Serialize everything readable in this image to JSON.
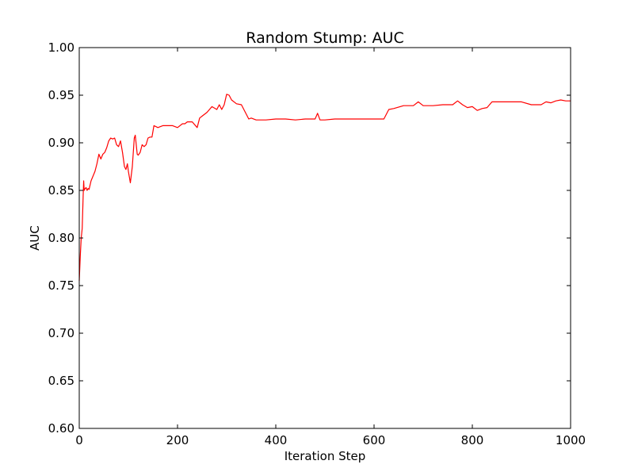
{
  "chart_data": {
    "type": "line",
    "title": "Random Stump: AUC",
    "xlabel": "Iteration Step",
    "ylabel": "AUC",
    "xlim": [
      0,
      1000
    ],
    "ylim": [
      0.6,
      1.0
    ],
    "grid": false,
    "x_ticks": [
      "0",
      "200",
      "400",
      "600",
      "800",
      "1000"
    ],
    "y_ticks": [
      "0.60",
      "0.65",
      "0.70",
      "0.75",
      "0.80",
      "0.85",
      "0.90",
      "0.95",
      "1.00"
    ],
    "series": [
      {
        "color": "#ff0000",
        "x": [
          0,
          2,
          4,
          6,
          8,
          9,
          10,
          12,
          14,
          16,
          18,
          20,
          24,
          28,
          32,
          36,
          40,
          44,
          48,
          52,
          56,
          60,
          64,
          68,
          72,
          76,
          80,
          84,
          88,
          92,
          95,
          98,
          100,
          104,
          108,
          110,
          112,
          114,
          118,
          120,
          124,
          128,
          132,
          136,
          140,
          144,
          148,
          152,
          156,
          160,
          170,
          180,
          190,
          200,
          210,
          215,
          220,
          230,
          240,
          245,
          250,
          260,
          270,
          280,
          285,
          290,
          295,
          300,
          305,
          310,
          320,
          330,
          340,
          345,
          350,
          360,
          380,
          400,
          420,
          440,
          460,
          470,
          480,
          485,
          490,
          500,
          520,
          540,
          560,
          580,
          600,
          610,
          620,
          630,
          640,
          660,
          680,
          690,
          700,
          720,
          740,
          760,
          770,
          780,
          790,
          800,
          810,
          820,
          830,
          840,
          860,
          880,
          900,
          920,
          940,
          950,
          960,
          970,
          980,
          990,
          1000
        ],
        "y": [
          0.755,
          0.78,
          0.8,
          0.81,
          0.845,
          0.86,
          0.85,
          0.852,
          0.853,
          0.85,
          0.852,
          0.851,
          0.86,
          0.865,
          0.87,
          0.878,
          0.888,
          0.883,
          0.888,
          0.89,
          0.895,
          0.902,
          0.905,
          0.904,
          0.905,
          0.898,
          0.896,
          0.902,
          0.89,
          0.875,
          0.872,
          0.878,
          0.87,
          0.858,
          0.875,
          0.89,
          0.905,
          0.908,
          0.888,
          0.887,
          0.89,
          0.898,
          0.896,
          0.898,
          0.905,
          0.906,
          0.906,
          0.918,
          0.917,
          0.916,
          0.918,
          0.918,
          0.918,
          0.916,
          0.92,
          0.92,
          0.922,
          0.922,
          0.916,
          0.926,
          0.928,
          0.932,
          0.938,
          0.935,
          0.94,
          0.935,
          0.94,
          0.951,
          0.95,
          0.945,
          0.941,
          0.94,
          0.93,
          0.925,
          0.926,
          0.924,
          0.924,
          0.925,
          0.925,
          0.924,
          0.925,
          0.925,
          0.925,
          0.931,
          0.924,
          0.924,
          0.925,
          0.925,
          0.925,
          0.925,
          0.925,
          0.925,
          0.925,
          0.935,
          0.936,
          0.939,
          0.939,
          0.943,
          0.939,
          0.939,
          0.94,
          0.94,
          0.944,
          0.94,
          0.937,
          0.938,
          0.934,
          0.936,
          0.937,
          0.943,
          0.943,
          0.943,
          0.943,
          0.94,
          0.94,
          0.943,
          0.942,
          0.944,
          0.945,
          0.944,
          0.944
        ]
      }
    ]
  }
}
